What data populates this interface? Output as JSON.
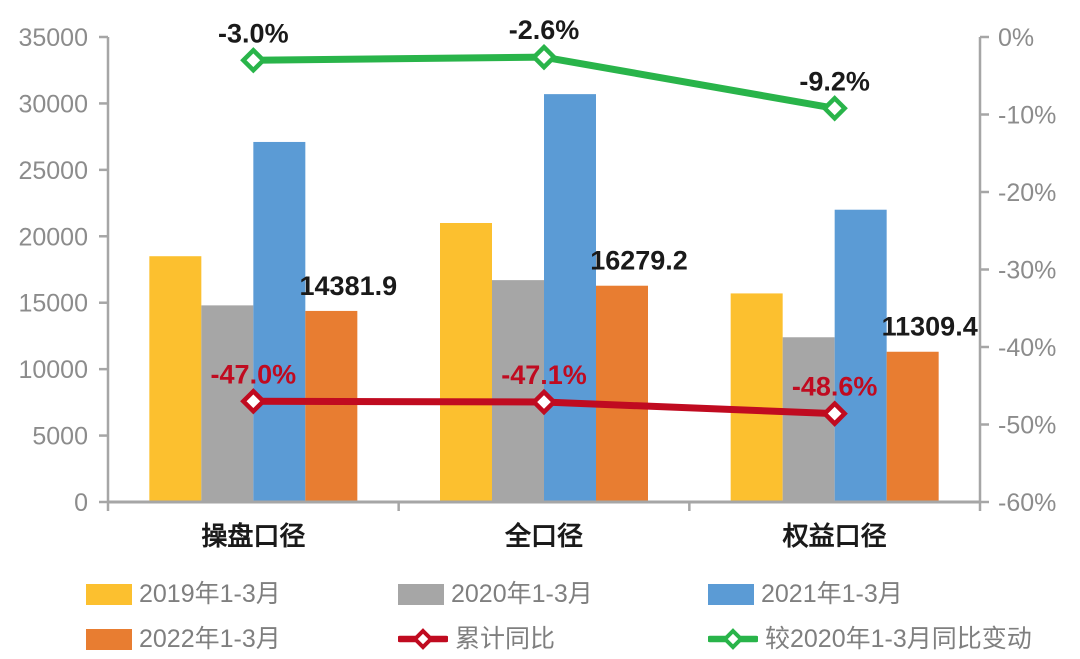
{
  "chart_data": {
    "type": "combo-bar-line",
    "title": "",
    "categories": [
      "操盘口径",
      "全口径",
      "权益口径"
    ],
    "bar_series": [
      {
        "name": "2019年1-3月",
        "color": "#FCC02F",
        "values": [
          18500,
          21000,
          15700
        ]
      },
      {
        "name": "2020年1-3月",
        "color": "#A6A6A6",
        "values": [
          14800,
          16700,
          12400
        ]
      },
      {
        "name": "2021年1-3月",
        "color": "#5B9BD5",
        "values": [
          27100,
          30700,
          22000
        ]
      },
      {
        "name": "2022年1-3月",
        "color": "#E87D31",
        "values": [
          14381.9,
          16279.2,
          11309.4
        ],
        "data_labels": [
          "14381.9",
          "16279.2",
          "11309.4"
        ],
        "label_color": "#1a1a1a"
      }
    ],
    "line_series": [
      {
        "name": "累计同比",
        "color": "#C00B20",
        "marker": "diamond",
        "axis": "right",
        "values_pct": [
          -47.0,
          -47.1,
          -48.6
        ],
        "data_labels": [
          "-47.0%",
          "-47.1%",
          "-48.6%"
        ],
        "label_color": "#C00B20"
      },
      {
        "name": "较2020年1-3月同比变动",
        "color": "#29B44A",
        "marker": "diamond",
        "axis": "right",
        "values_pct": [
          -3.0,
          -2.6,
          -9.2
        ],
        "data_labels": [
          "-3.0%",
          "-2.6%",
          "-9.2%"
        ],
        "label_color": "#1a1a1a"
      }
    ],
    "left_axis": {
      "min": 0,
      "max": 35000,
      "step": 5000,
      "tick_labels": [
        "0",
        "5000",
        "10000",
        "15000",
        "20000",
        "25000",
        "30000",
        "35000"
      ]
    },
    "right_axis": {
      "min": -60,
      "max": 0,
      "step": 10,
      "tick_labels": [
        "0%",
        "-10%",
        "-20%",
        "-30%",
        "-40%",
        "-50%",
        "-60%"
      ]
    },
    "grid": "off",
    "legend_position": "bottom",
    "style": {
      "axis_color": "#a6a6a6",
      "tick_label_color": "#8c8c8c",
      "category_label_color": "#1a1a1a",
      "legend_text_color": "#7f7f7f",
      "background": "#ffffff"
    }
  }
}
